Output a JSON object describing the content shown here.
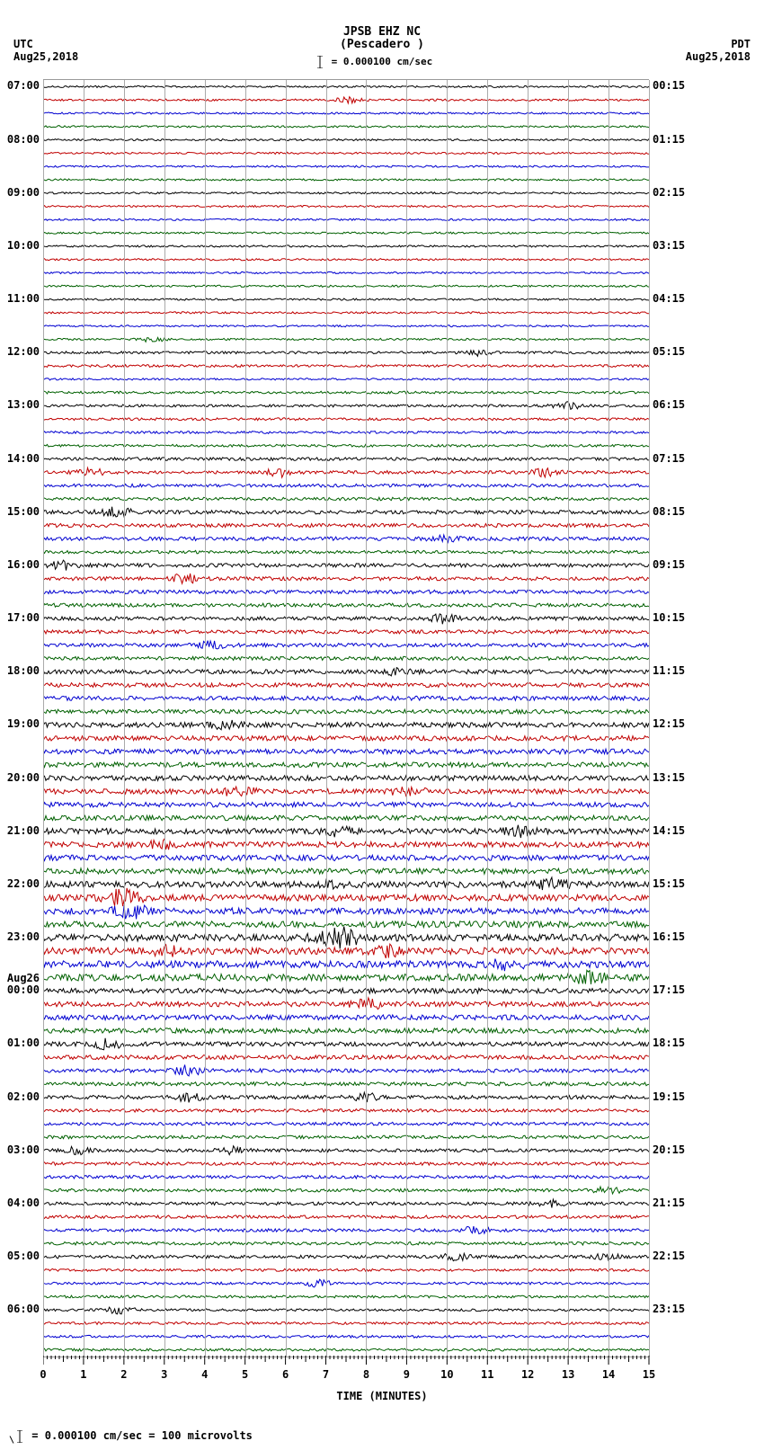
{
  "header": {
    "station_id": "JPSB EHZ NC",
    "location": "(Pescadero )",
    "scale_text": "= 0.000100 cm/sec",
    "left_tz": "UTC",
    "left_date": "Aug25,2018",
    "right_tz": "PDT",
    "right_date": "Aug25,2018"
  },
  "footer": {
    "text": "= 0.000100 cm/sec =    100 microvolts"
  },
  "axes": {
    "x_title": "TIME (MINUTES)",
    "x_ticks": [
      "0",
      "1",
      "2",
      "3",
      "4",
      "5",
      "6",
      "7",
      "8",
      "9",
      "10",
      "11",
      "12",
      "13",
      "14",
      "15"
    ],
    "x_min": 0,
    "x_max": 15
  },
  "plot": {
    "n_traces": 96,
    "trace_colors": [
      "#000000",
      "#c00000",
      "#0000d0",
      "#006000"
    ],
    "grid_color": "#aaaaaa",
    "background_color": "#ffffff",
    "noise_amplitudes": [
      3,
      3,
      3,
      3,
      3,
      3,
      3,
      3,
      3,
      3,
      3,
      3,
      3,
      3,
      3,
      3,
      3,
      3,
      3,
      3,
      4,
      4,
      3,
      4,
      4,
      4,
      4,
      4,
      5,
      5,
      5,
      5,
      6,
      6,
      6,
      5,
      6,
      6,
      6,
      6,
      6,
      6,
      6,
      6,
      7,
      7,
      7,
      7,
      8,
      8,
      8,
      8,
      8,
      8,
      8,
      8,
      9,
      9,
      9,
      9,
      10,
      10,
      10,
      10,
      11,
      11,
      11,
      11,
      8,
      8,
      8,
      8,
      7,
      7,
      6,
      6,
      6,
      5,
      5,
      5,
      5,
      5,
      5,
      5,
      5,
      5,
      5,
      5,
      5,
      4,
      4,
      4,
      4,
      4,
      4,
      4
    ],
    "events": [
      {
        "trace": 1,
        "minute": 7.6,
        "amp": 9,
        "w": 6
      },
      {
        "trace": 19,
        "minute": 2.7,
        "amp": 7,
        "w": 4
      },
      {
        "trace": 20,
        "minute": 10.8,
        "amp": 8,
        "w": 5
      },
      {
        "trace": 24,
        "minute": 13.0,
        "amp": 10,
        "w": 6
      },
      {
        "trace": 29,
        "minute": 1.2,
        "amp": 12,
        "w": 8
      },
      {
        "trace": 29,
        "minute": 5.9,
        "amp": 12,
        "w": 8
      },
      {
        "trace": 29,
        "minute": 12.4,
        "amp": 12,
        "w": 8
      },
      {
        "trace": 32,
        "minute": 1.8,
        "amp": 15,
        "w": 10
      },
      {
        "trace": 34,
        "minute": 9.9,
        "amp": 10,
        "w": 6
      },
      {
        "trace": 36,
        "minute": 0.5,
        "amp": 12,
        "w": 6
      },
      {
        "trace": 37,
        "minute": 3.5,
        "amp": 12,
        "w": 8
      },
      {
        "trace": 40,
        "minute": 9.9,
        "amp": 12,
        "w": 6
      },
      {
        "trace": 42,
        "minute": 4.2,
        "amp": 10,
        "w": 6
      },
      {
        "trace": 44,
        "minute": 8.8,
        "amp": 10,
        "w": 6
      },
      {
        "trace": 48,
        "minute": 4.5,
        "amp": 12,
        "w": 6
      },
      {
        "trace": 53,
        "minute": 9.0,
        "amp": 16,
        "w": 10
      },
      {
        "trace": 53,
        "minute": 4.8,
        "amp": 16,
        "w": 10
      },
      {
        "trace": 56,
        "minute": 7.3,
        "amp": 12,
        "w": 6
      },
      {
        "trace": 56,
        "minute": 11.8,
        "amp": 14,
        "w": 8
      },
      {
        "trace": 57,
        "minute": 3.0,
        "amp": 12,
        "w": 6
      },
      {
        "trace": 60,
        "minute": 7.1,
        "amp": 14,
        "w": 8
      },
      {
        "trace": 60,
        "minute": 12.6,
        "amp": 14,
        "w": 8
      },
      {
        "trace": 61,
        "minute": 2.0,
        "amp": 22,
        "w": 18
      },
      {
        "trace": 62,
        "minute": 2.2,
        "amp": 18,
        "w": 14
      },
      {
        "trace": 64,
        "minute": 7.3,
        "amp": 30,
        "w": 20
      },
      {
        "trace": 65,
        "minute": 3.0,
        "amp": 14,
        "w": 8
      },
      {
        "trace": 65,
        "minute": 8.5,
        "amp": 14,
        "w": 8
      },
      {
        "trace": 66,
        "minute": 11.5,
        "amp": 14,
        "w": 8
      },
      {
        "trace": 67,
        "minute": 13.5,
        "amp": 16,
        "w": 10
      },
      {
        "trace": 69,
        "minute": 8.0,
        "amp": 18,
        "w": 6
      },
      {
        "trace": 72,
        "minute": 1.6,
        "amp": 14,
        "w": 8
      },
      {
        "trace": 74,
        "minute": 3.6,
        "amp": 14,
        "w": 8
      },
      {
        "trace": 76,
        "minute": 3.6,
        "amp": 12,
        "w": 6
      },
      {
        "trace": 76,
        "minute": 8.0,
        "amp": 10,
        "w": 6
      },
      {
        "trace": 80,
        "minute": 0.8,
        "amp": 12,
        "w": 6
      },
      {
        "trace": 80,
        "minute": 4.7,
        "amp": 10,
        "w": 6
      },
      {
        "trace": 83,
        "minute": 14.0,
        "amp": 12,
        "w": 6
      },
      {
        "trace": 84,
        "minute": 12.5,
        "amp": 12,
        "w": 6
      },
      {
        "trace": 86,
        "minute": 10.7,
        "amp": 10,
        "w": 5
      },
      {
        "trace": 88,
        "minute": 10.2,
        "amp": 10,
        "w": 5
      },
      {
        "trace": 88,
        "minute": 14.0,
        "amp": 10,
        "w": 5
      },
      {
        "trace": 90,
        "minute": 6.8,
        "amp": 10,
        "w": 5
      },
      {
        "trace": 92,
        "minute": 1.9,
        "amp": 10,
        "w": 6
      }
    ]
  },
  "time_labels": {
    "left": [
      {
        "trace": 0,
        "text": "07:00"
      },
      {
        "trace": 4,
        "text": "08:00"
      },
      {
        "trace": 8,
        "text": "09:00"
      },
      {
        "trace": 12,
        "text": "10:00"
      },
      {
        "trace": 16,
        "text": "11:00"
      },
      {
        "trace": 20,
        "text": "12:00"
      },
      {
        "trace": 24,
        "text": "13:00"
      },
      {
        "trace": 28,
        "text": "14:00"
      },
      {
        "trace": 32,
        "text": "15:00"
      },
      {
        "trace": 36,
        "text": "16:00"
      },
      {
        "trace": 40,
        "text": "17:00"
      },
      {
        "trace": 44,
        "text": "18:00"
      },
      {
        "trace": 48,
        "text": "19:00"
      },
      {
        "trace": 52,
        "text": "20:00"
      },
      {
        "trace": 56,
        "text": "21:00"
      },
      {
        "trace": 60,
        "text": "22:00"
      },
      {
        "trace": 64,
        "text": "23:00"
      },
      {
        "trace": 68,
        "text": "Aug26\n00:00"
      },
      {
        "trace": 72,
        "text": "01:00"
      },
      {
        "trace": 76,
        "text": "02:00"
      },
      {
        "trace": 80,
        "text": "03:00"
      },
      {
        "trace": 84,
        "text": "04:00"
      },
      {
        "trace": 88,
        "text": "05:00"
      },
      {
        "trace": 92,
        "text": "06:00"
      }
    ],
    "right": [
      {
        "trace": 0,
        "text": "00:15"
      },
      {
        "trace": 4,
        "text": "01:15"
      },
      {
        "trace": 8,
        "text": "02:15"
      },
      {
        "trace": 12,
        "text": "03:15"
      },
      {
        "trace": 16,
        "text": "04:15"
      },
      {
        "trace": 20,
        "text": "05:15"
      },
      {
        "trace": 24,
        "text": "06:15"
      },
      {
        "trace": 28,
        "text": "07:15"
      },
      {
        "trace": 32,
        "text": "08:15"
      },
      {
        "trace": 36,
        "text": "09:15"
      },
      {
        "trace": 40,
        "text": "10:15"
      },
      {
        "trace": 44,
        "text": "11:15"
      },
      {
        "trace": 48,
        "text": "12:15"
      },
      {
        "trace": 52,
        "text": "13:15"
      },
      {
        "trace": 56,
        "text": "14:15"
      },
      {
        "trace": 60,
        "text": "15:15"
      },
      {
        "trace": 64,
        "text": "16:15"
      },
      {
        "trace": 68,
        "text": "17:15"
      },
      {
        "trace": 72,
        "text": "18:15"
      },
      {
        "trace": 76,
        "text": "19:15"
      },
      {
        "trace": 80,
        "text": "20:15"
      },
      {
        "trace": 84,
        "text": "21:15"
      },
      {
        "trace": 88,
        "text": "22:15"
      },
      {
        "trace": 92,
        "text": "23:15"
      }
    ]
  }
}
